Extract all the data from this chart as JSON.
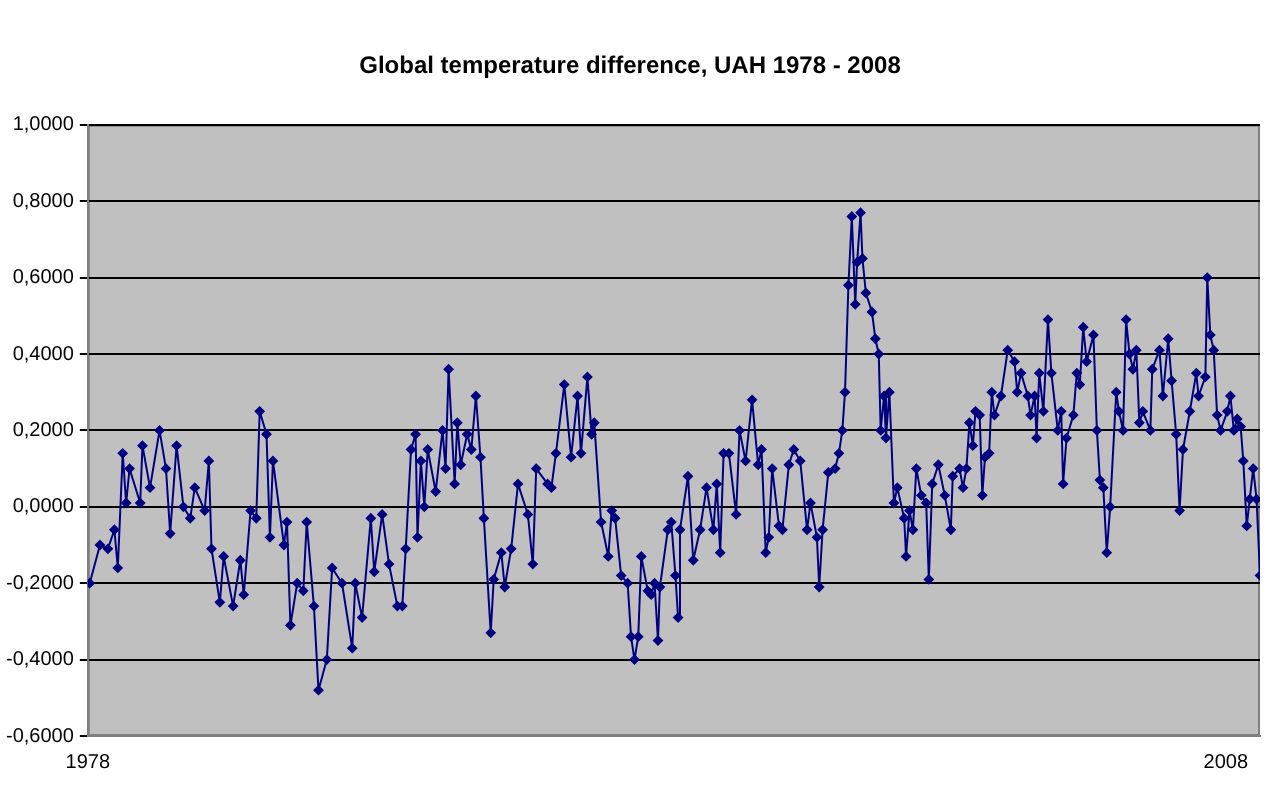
{
  "chart_data": {
    "type": "line",
    "title": "Global temperature difference, UAH 1978 - 2008",
    "x": [
      1978.05,
      1978.32,
      1978.53,
      1978.7,
      1978.79,
      1978.92,
      1979.01,
      1979.1,
      1979.38,
      1979.44,
      1979.64,
      1979.89,
      1980.06,
      1980.17,
      1980.34,
      1980.52,
      1980.7,
      1980.82,
      1981.08,
      1981.19,
      1981.26,
      1981.48,
      1981.58,
      1981.83,
      1982.02,
      1982.11,
      1982.29,
      1982.44,
      1982.53,
      1982.71,
      1982.8,
      1982.88,
      1983.17,
      1983.25,
      1983.34,
      1983.52,
      1983.68,
      1983.77,
      1983.96,
      1984.08,
      1984.3,
      1984.44,
      1984.7,
      1984.97,
      1985.05,
      1985.23,
      1985.46,
      1985.55,
      1985.76,
      1985.94,
      1986.16,
      1986.29,
      1986.38,
      1986.52,
      1986.64,
      1986.69,
      1986.78,
      1986.87,
      1986.96,
      1987.17,
      1987.35,
      1987.43,
      1987.51,
      1987.67,
      1987.74,
      1987.83,
      1988.0,
      1988.11,
      1988.23,
      1988.35,
      1988.44,
      1988.62,
      1988.7,
      1988.9,
      1988.99,
      1989.16,
      1989.34,
      1989.6,
      1989.73,
      1989.82,
      1990.12,
      1990.22,
      1990.34,
      1990.56,
      1990.74,
      1990.91,
      1991.0,
      1991.17,
      1991.28,
      1991.35,
      1991.53,
      1991.72,
      1991.81,
      1991.9,
      1992.06,
      1992.23,
      1992.32,
      1992.41,
      1992.51,
      1992.59,
      1992.76,
      1992.85,
      1992.94,
      1993.03,
      1993.08,
      1993.29,
      1993.38,
      1993.49,
      1993.56,
      1993.61,
      1993.82,
      1993.96,
      1994.14,
      1994.31,
      1994.49,
      1994.58,
      1994.67,
      1994.76,
      1994.9,
      1995.09,
      1995.18,
      1995.34,
      1995.51,
      1995.67,
      1995.76,
      1995.87,
      1995.95,
      1996.04,
      1996.22,
      1996.31,
      1996.48,
      1996.61,
      1996.78,
      1996.96,
      1997.05,
      1997.22,
      1997.28,
      1997.37,
      1997.52,
      1997.7,
      1997.8,
      1997.89,
      1997.96,
      1998.05,
      1998.14,
      1998.23,
      1998.28,
      1998.37,
      1998.42,
      1998.51,
      1998.67,
      1998.76,
      1998.85,
      1998.9,
      1998.99,
      1999.04,
      1999.13,
      1999.25,
      1999.34,
      1999.52,
      1999.57,
      1999.66,
      1999.75,
      1999.84,
      1999.97,
      2000.1,
      2000.17,
      2000.26,
      2000.42,
      2000.59,
      2000.75,
      2000.8,
      2000.98,
      2001.07,
      2001.16,
      2001.24,
      2001.33,
      2001.4,
      2001.51,
      2001.58,
      2001.65,
      2001.76,
      2001.83,
      2001.9,
      2002.07,
      2002.25,
      2002.43,
      2002.5,
      2002.6,
      2002.78,
      2002.85,
      2002.96,
      2003.01,
      2003.08,
      2003.19,
      2003.31,
      2003.4,
      2003.57,
      2003.66,
      2003.71,
      2003.8,
      2003.98,
      2004.07,
      2004.15,
      2004.24,
      2004.33,
      2004.51,
      2004.6,
      2004.68,
      2004.77,
      2004.86,
      2004.95,
      2005.11,
      2005.18,
      2005.29,
      2005.37,
      2005.46,
      2005.55,
      2005.64,
      2005.72,
      2005.81,
      2006.01,
      2006.06,
      2006.25,
      2006.34,
      2006.48,
      2006.57,
      2006.69,
      2006.78,
      2006.87,
      2007.05,
      2007.22,
      2007.28,
      2007.46,
      2007.51,
      2007.59,
      2007.68,
      2007.77,
      2007.86,
      2008.04,
      2008.12,
      2008.21,
      2008.3,
      2008.39,
      2008.46,
      2008.55,
      2008.63,
      2008.72,
      2008.81,
      2008.9
    ],
    "values": [
      -0.2,
      -0.1,
      -0.11,
      -0.06,
      -0.16,
      0.14,
      0.01,
      0.1,
      0.01,
      0.16,
      0.05,
      0.2,
      0.1,
      -0.07,
      0.16,
      0.0,
      -0.03,
      0.05,
      -0.01,
      0.12,
      -0.11,
      -0.25,
      -0.13,
      -0.26,
      -0.14,
      -0.23,
      -0.01,
      -0.03,
      0.25,
      0.19,
      -0.08,
      0.12,
      -0.1,
      -0.04,
      -0.31,
      -0.2,
      -0.22,
      -0.04,
      -0.26,
      -0.48,
      -0.4,
      -0.16,
      -0.2,
      -0.37,
      -0.2,
      -0.29,
      -0.03,
      -0.17,
      -0.02,
      -0.15,
      -0.26,
      -0.26,
      -0.11,
      0.15,
      0.19,
      -0.08,
      0.12,
      0.0,
      0.15,
      0.04,
      0.2,
      0.1,
      0.36,
      0.06,
      0.22,
      0.11,
      0.19,
      0.15,
      0.29,
      0.13,
      -0.03,
      -0.33,
      -0.19,
      -0.12,
      -0.21,
      -0.11,
      0.06,
      -0.02,
      -0.15,
      0.1,
      0.06,
      0.05,
      0.14,
      0.32,
      0.13,
      0.29,
      0.14,
      0.34,
      0.19,
      0.22,
      -0.04,
      -0.13,
      -0.01,
      -0.03,
      -0.18,
      -0.2,
      -0.34,
      -0.4,
      -0.34,
      -0.13,
      -0.22,
      -0.23,
      -0.2,
      -0.35,
      -0.21,
      -0.06,
      -0.04,
      -0.18,
      -0.29,
      -0.06,
      0.08,
      -0.14,
      -0.06,
      0.05,
      -0.06,
      0.06,
      -0.12,
      0.14,
      0.14,
      -0.02,
      0.2,
      0.12,
      0.28,
      0.11,
      0.15,
      -0.12,
      -0.08,
      0.1,
      -0.05,
      -0.06,
      0.11,
      0.15,
      0.12,
      -0.06,
      0.01,
      -0.08,
      -0.21,
      -0.06,
      0.09,
      0.1,
      0.14,
      0.2,
      0.3,
      0.58,
      0.76,
      0.53,
      0.64,
      0.77,
      0.65,
      0.56,
      0.51,
      0.44,
      0.4,
      0.2,
      0.29,
      0.18,
      0.3,
      0.01,
      0.05,
      -0.03,
      -0.13,
      -0.01,
      -0.06,
      0.1,
      0.03,
      0.01,
      -0.19,
      0.06,
      0.11,
      0.03,
      -0.06,
      0.08,
      0.1,
      0.05,
      0.1,
      0.22,
      0.16,
      0.25,
      0.24,
      0.03,
      0.13,
      0.14,
      0.3,
      0.24,
      0.29,
      0.41,
      0.38,
      0.3,
      0.35,
      0.29,
      0.24,
      0.29,
      0.18,
      0.35,
      0.25,
      0.49,
      0.35,
      0.2,
      0.25,
      0.06,
      0.18,
      0.24,
      0.35,
      0.32,
      0.47,
      0.38,
      0.45,
      0.2,
      0.07,
      0.05,
      -0.12,
      0.0,
      0.3,
      0.25,
      0.2,
      0.49,
      0.4,
      0.36,
      0.41,
      0.22,
      0.25,
      0.2,
      0.36,
      0.41,
      0.29,
      0.44,
      0.33,
      0.19,
      -0.01,
      0.15,
      0.25,
      0.35,
      0.29,
      0.34,
      0.6,
      0.45,
      0.41,
      0.24,
      0.2,
      0.25,
      0.29,
      0.2,
      0.23,
      0.21,
      0.12,
      -0.05,
      0.02,
      0.1,
      0.02,
      -0.18
    ],
    "color": "#000080",
    "marker": "diamond",
    "line_style": "solid",
    "xlim": [
      1978,
      2008.9
    ],
    "xticks": [
      {
        "value": 1978,
        "label": "1978"
      },
      {
        "value": 2008,
        "label": "2008"
      }
    ],
    "ylim": [
      -0.6,
      1.0
    ],
    "yticks": [
      {
        "value": -0.6,
        "label": "-0,6000"
      },
      {
        "value": -0.4,
        "label": "-0,4000"
      },
      {
        "value": -0.2,
        "label": "-0,2000"
      },
      {
        "value": 0,
        "label": "0,0000"
      },
      {
        "value": 0.2,
        "label": "0,2000"
      },
      {
        "value": 0.4,
        "label": "0,4000"
      },
      {
        "value": 0.6,
        "label": "0,6000"
      },
      {
        "value": 0.8,
        "label": "0,8000"
      },
      {
        "value": 1.0,
        "label": "1,0000"
      }
    ],
    "grid": "y",
    "legend": false
  }
}
